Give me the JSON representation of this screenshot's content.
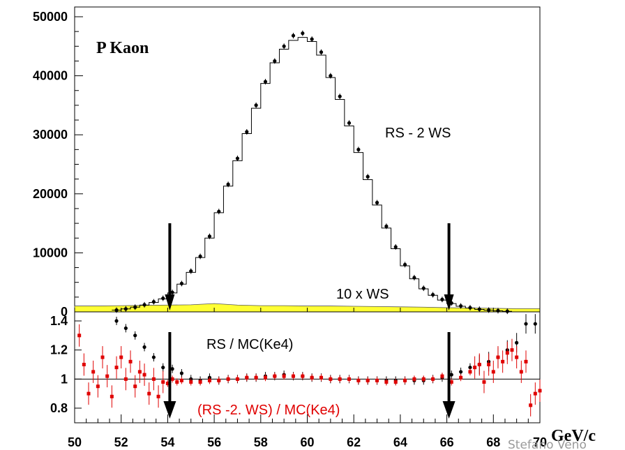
{
  "chart_data": [
    {
      "type": "line",
      "panel": "main",
      "title": "P Kaon",
      "xlim": [
        50,
        70
      ],
      "ylim": [
        0,
        50000
      ],
      "y_ticks": [
        "0",
        "10000",
        "20000",
        "30000",
        "40000",
        "50000"
      ],
      "annotations": {
        "main_series": "RS - 2 WS",
        "ws_band": "10 x WS"
      },
      "cut_values": [
        54,
        66
      ],
      "series": [
        {
          "style": "points",
          "x": [
            51.8,
            52.2,
            52.6,
            53.0,
            53.4,
            53.8,
            54.2,
            54.6,
            55.0,
            55.4,
            55.8,
            56.2,
            56.6,
            57.0,
            57.4,
            57.8,
            58.2,
            58.6,
            59.0,
            59.4,
            59.8,
            60.2,
            60.6,
            61.0,
            61.4,
            61.8,
            62.2,
            62.6,
            63.0,
            63.4,
            63.8,
            64.2,
            64.6,
            65.0,
            65.4,
            65.8,
            66.2,
            66.6,
            67.0,
            67.4,
            67.8,
            68.2,
            68.6
          ],
          "y": [
            300,
            500,
            800,
            1200,
            1700,
            2300,
            3300,
            4800,
            6900,
            9400,
            12800,
            17000,
            21600,
            26000,
            30500,
            35000,
            39000,
            42500,
            45000,
            46800,
            47200,
            46200,
            44000,
            40000,
            36500,
            32000,
            27500,
            22900,
            18500,
            14500,
            11000,
            8000,
            5800,
            4000,
            2900,
            2100,
            1500,
            1000,
            700,
            450,
            300,
            200,
            100
          ]
        },
        {
          "style": "step",
          "x": [
            51.8,
            52.2,
            52.6,
            53.0,
            53.4,
            53.8,
            54.2,
            54.6,
            55.0,
            55.4,
            55.8,
            56.2,
            56.6,
            57.0,
            57.4,
            57.8,
            58.2,
            58.6,
            59.0,
            59.4,
            59.8,
            60.2,
            60.6,
            61.0,
            61.4,
            61.8,
            62.2,
            62.6,
            63.0,
            63.4,
            63.8,
            64.2,
            64.6,
            65.0,
            65.4,
            65.8,
            66.2,
            66.6,
            67.0,
            67.4,
            67.8,
            68.2,
            68.6
          ],
          "y": [
            300,
            500,
            800,
            1150,
            1600,
            2200,
            3200,
            4700,
            6700,
            9200,
            12500,
            16800,
            21300,
            25600,
            30200,
            34500,
            38700,
            42200,
            44500,
            46000,
            46500,
            45800,
            43500,
            39700,
            36000,
            31500,
            27000,
            22400,
            18100,
            14200,
            10700,
            7800,
            5600,
            3900,
            2800,
            2000,
            1400,
            950,
            650,
            420,
            280,
            180,
            90
          ]
        },
        {
          "style": "filled",
          "x": [
            50,
            51,
            52,
            53,
            54,
            55,
            56,
            57,
            58,
            59,
            60,
            61,
            62,
            63,
            64,
            65,
            66,
            67,
            68,
            69,
            70
          ],
          "y": [
            1000,
            1000,
            1050,
            1100,
            1150,
            1200,
            1400,
            1150,
            1050,
            1050,
            1000,
            1000,
            950,
            900,
            850,
            800,
            700,
            650,
            600,
            550,
            550
          ]
        }
      ]
    },
    {
      "type": "scatter",
      "panel": "ratio",
      "xlim": [
        50,
        70
      ],
      "ylim": [
        0.7,
        1.45
      ],
      "x_ticks": [
        "50",
        "52",
        "54",
        "56",
        "58",
        "60",
        "62",
        "64",
        "66",
        "68",
        "70"
      ],
      "y_ticks": [
        "0.8",
        "1",
        "1.2",
        "1.4"
      ],
      "x_unit": "GeV/c",
      "annotations": {
        "black_series": "RS / MC(Ke4)",
        "red_series": "(RS -2. WS) / MC(Ke4)"
      },
      "cut_values": [
        54,
        66
      ],
      "reference_line": 1,
      "series": [
        {
          "x": [
            51.8,
            52.2,
            52.6,
            53.0,
            53.4,
            53.8,
            54.2,
            54.6,
            55.0,
            55.4,
            55.8,
            56.2,
            56.6,
            57.0,
            57.4,
            57.8,
            58.2,
            58.6,
            59.0,
            59.4,
            59.8,
            60.2,
            60.6,
            61.0,
            61.4,
            61.8,
            62.2,
            62.6,
            63.0,
            63.4,
            63.8,
            64.2,
            64.6,
            65.0,
            65.4,
            65.8,
            66.2,
            66.6,
            67.0,
            67.4,
            67.8,
            68.2,
            68.6,
            69.0,
            69.4,
            69.8
          ],
          "y": [
            1.4,
            1.35,
            1.3,
            1.22,
            1.15,
            1.08,
            1.07,
            1.04,
            1.0,
            0.99,
            1.01,
            0.99,
            1.0,
            1.0,
            1.01,
            1.01,
            1.02,
            1.02,
            1.03,
            1.02,
            1.02,
            1.01,
            1.01,
            1.0,
            1.0,
            1.0,
            0.99,
            0.99,
            0.99,
            0.99,
            0.99,
            0.99,
            0.99,
            0.99,
            1.0,
            1.01,
            1.03,
            1.05,
            1.08,
            1.1,
            1.12,
            1.15,
            1.2,
            1.25,
            1.38,
            1.38
          ]
        },
        {
          "x": [
            50.2,
            50.4,
            50.6,
            50.8,
            51.0,
            51.2,
            51.4,
            51.6,
            51.8,
            52.0,
            52.2,
            52.4,
            52.6,
            52.8,
            53.0,
            53.2,
            53.4,
            53.6,
            53.8,
            54.0,
            54.2,
            54.4,
            54.6,
            55.0,
            55.4,
            55.8,
            56.2,
            56.6,
            57.0,
            57.4,
            57.8,
            58.2,
            58.6,
            59.0,
            59.4,
            59.8,
            60.2,
            60.6,
            61.0,
            61.4,
            61.8,
            62.2,
            62.6,
            63.0,
            63.4,
            63.8,
            64.2,
            64.6,
            65.0,
            65.4,
            65.8,
            66.2,
            66.6,
            67.0,
            67.2,
            67.4,
            67.6,
            67.8,
            68.0,
            68.2,
            68.4,
            68.6,
            68.8,
            69.0,
            69.2,
            69.4,
            69.6,
            69.8,
            70.0
          ],
          "y": [
            1.3,
            1.1,
            0.9,
            1.05,
            0.95,
            1.15,
            1.02,
            0.88,
            1.08,
            1.15,
            1.0,
            1.12,
            0.95,
            1.05,
            1.03,
            0.9,
            1.0,
            0.88,
            0.98,
            0.97,
            1.0,
            0.98,
            0.99,
            0.98,
            0.98,
            0.99,
            0.99,
            1.0,
            1.0,
            1.01,
            1.01,
            1.01,
            1.02,
            1.02,
            1.02,
            1.02,
            1.01,
            1.01,
            1.0,
            1.0,
            1.0,
            0.99,
            0.99,
            0.99,
            0.98,
            0.98,
            0.99,
            1.0,
            1.0,
            1.0,
            1.02,
            0.98,
            1.01,
            1.05,
            1.08,
            1.1,
            0.98,
            1.1,
            1.05,
            1.15,
            1.12,
            1.18,
            1.2,
            1.15,
            1.05,
            1.12,
            0.82,
            0.9,
            0.92
          ]
        }
      ]
    }
  ],
  "footer": {
    "text": "Stefano Veno"
  }
}
